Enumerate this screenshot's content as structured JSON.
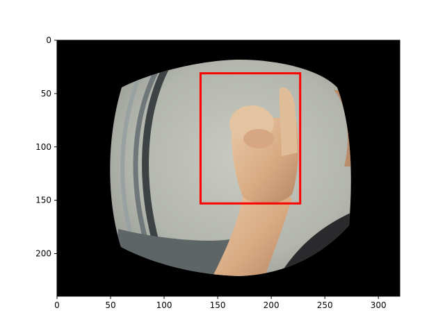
{
  "image_plot": {
    "x_ticks": [
      0,
      50,
      100,
      150,
      200,
      250,
      300
    ],
    "y_ticks": [
      0,
      50,
      100,
      150,
      200
    ],
    "xlim": [
      0,
      320
    ],
    "ylim": [
      240,
      0
    ],
    "bounding_box": {
      "x_min": 134,
      "y_min": 31,
      "x_max": 227,
      "y_max": 153,
      "color": "#ff0000"
    },
    "scene": {
      "subject": "hand making a sign gesture with index finger raised",
      "background_color": "#000000"
    }
  }
}
